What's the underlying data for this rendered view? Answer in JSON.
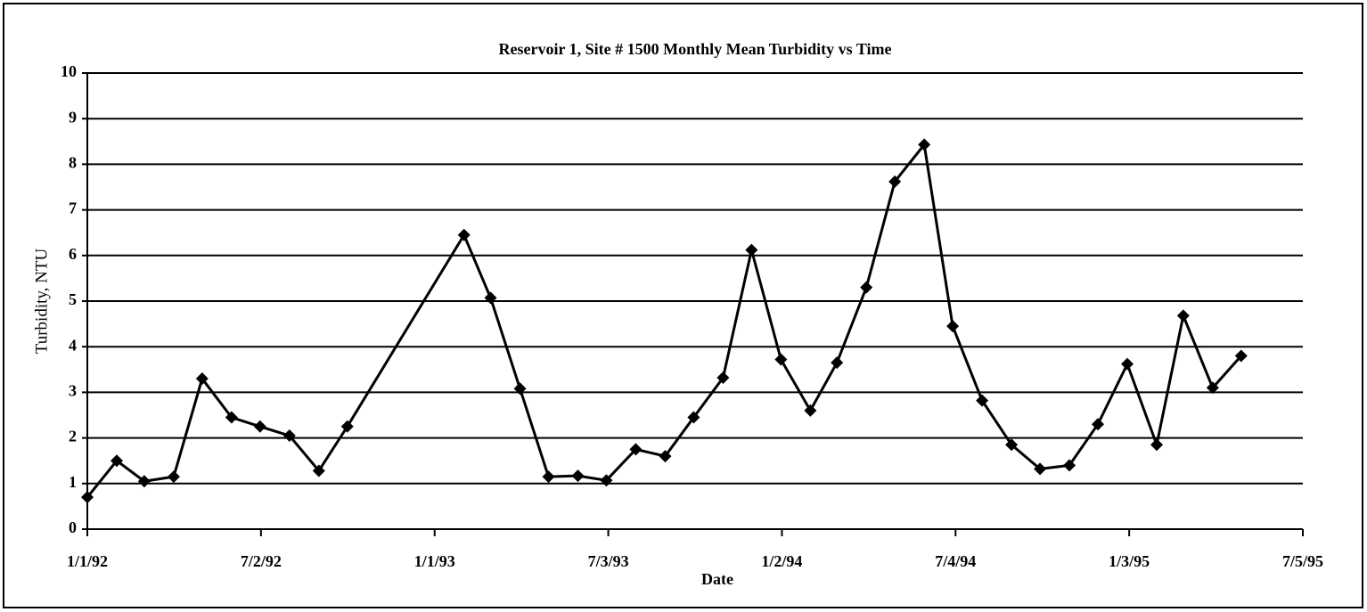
{
  "chart_data": {
    "type": "line",
    "title": "Reservoir 1, Site # 1500 Monthly Mean Turbidity vs Time",
    "x_label": "Date",
    "y_label": "Turbidity, NTU",
    "color": "#000000",
    "grid": true,
    "x": [
      "1992-01-01",
      "1992-02-01",
      "1992-03-01",
      "1992-04-01",
      "1992-05-01",
      "1992-06-01",
      "1992-07-01",
      "1992-08-01",
      "1992-09-01",
      "1992-10-01",
      "1993-02-01",
      "1993-03-01",
      "1993-04-01",
      "1993-05-01",
      "1993-06-01",
      "1993-07-01",
      "1993-08-01",
      "1993-09-01",
      "1993-10-01",
      "1993-11-01",
      "1993-12-01",
      "1994-01-01",
      "1994-02-01",
      "1994-03-01",
      "1994-04-01",
      "1994-05-01",
      "1994-06-01",
      "1994-07-01",
      "1994-08-01",
      "1994-09-01",
      "1994-10-01",
      "1994-11-01",
      "1994-12-01",
      "1995-01-01",
      "1995-02-01",
      "1995-03-01",
      "1995-04-01",
      "1995-05-01"
    ],
    "values": [
      0.7,
      1.5,
      1.05,
      1.15,
      3.3,
      2.45,
      2.25,
      2.05,
      1.28,
      2.25,
      6.45,
      5.07,
      3.08,
      1.15,
      1.17,
      1.07,
      1.75,
      1.6,
      2.45,
      3.32,
      6.12,
      3.72,
      2.6,
      3.65,
      5.3,
      7.62,
      8.43,
      4.45,
      2.82,
      1.85,
      1.32,
      1.4,
      2.3,
      3.62,
      1.85,
      4.68,
      3.1,
      3.8
    ],
    "xlim": [
      "1992-01-01",
      "1995-07-05"
    ],
    "xticks": [
      {
        "value": "1992-01-01",
        "label": "1/1/92"
      },
      {
        "value": "1992-07-02",
        "label": "7/2/92"
      },
      {
        "value": "1993-01-01",
        "label": "1/1/93"
      },
      {
        "value": "1993-07-03",
        "label": "7/3/93"
      },
      {
        "value": "1994-01-02",
        "label": "1/2/94"
      },
      {
        "value": "1994-07-04",
        "label": "7/4/94"
      },
      {
        "value": "1995-01-03",
        "label": "1/3/95"
      },
      {
        "value": "1995-07-05",
        "label": "7/5/95"
      }
    ],
    "ylim": [
      0,
      10
    ],
    "yticks": [
      0,
      1,
      2,
      3,
      4,
      5,
      6,
      7,
      8,
      9,
      10
    ]
  }
}
